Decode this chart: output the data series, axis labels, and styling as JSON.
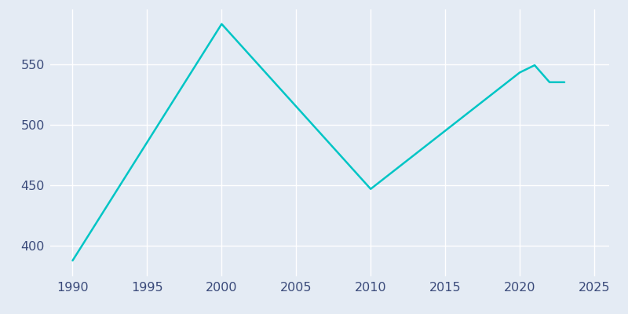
{
  "years": [
    1990,
    2000,
    2010,
    2020,
    2021,
    2022,
    2023
  ],
  "population": [
    388,
    583,
    447,
    543,
    549,
    535,
    535
  ],
  "line_color": "#00C5C5",
  "background_color": "#E4EBF4",
  "grid_color": "#FFFFFF",
  "xlim": [
    1988.5,
    2026
  ],
  "ylim": [
    375,
    595
  ],
  "xticks": [
    1990,
    1995,
    2000,
    2005,
    2010,
    2015,
    2020,
    2025
  ],
  "yticks": [
    400,
    450,
    500,
    550
  ],
  "tick_label_color": "#3A4A7A",
  "tick_label_size": 11.5
}
